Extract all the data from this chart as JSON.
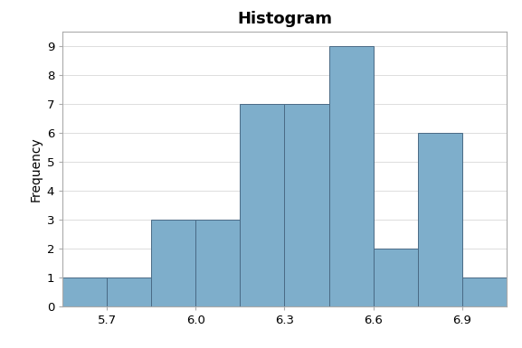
{
  "title": "Histogram",
  "ylabel": "Frequency",
  "xlabel": "",
  "bar_color": "#7eaecb",
  "bar_edge_color": "#4a6a85",
  "bar_left_edges": [
    5.55,
    5.7,
    5.85,
    6.0,
    6.15,
    6.3,
    6.45,
    6.6,
    6.75,
    6.9
  ],
  "bar_heights": [
    1,
    1,
    3,
    3,
    7,
    7,
    9,
    2,
    6,
    1
  ],
  "bar_width": 0.15,
  "xlim": [
    5.55,
    7.05
  ],
  "ylim": [
    0,
    9.5
  ],
  "xticks": [
    5.7,
    6.0,
    6.3,
    6.6,
    6.9
  ],
  "yticks": [
    0,
    1,
    2,
    3,
    4,
    5,
    6,
    7,
    8,
    9
  ],
  "title_fontsize": 13,
  "title_fontweight": "bold",
  "axis_label_fontsize": 10,
  "tick_fontsize": 9.5,
  "background_color": "#ffffff",
  "plot_bg_color": "#ffffff",
  "spine_color": "#aaaaaa",
  "grid_color": "#d0d0d0"
}
